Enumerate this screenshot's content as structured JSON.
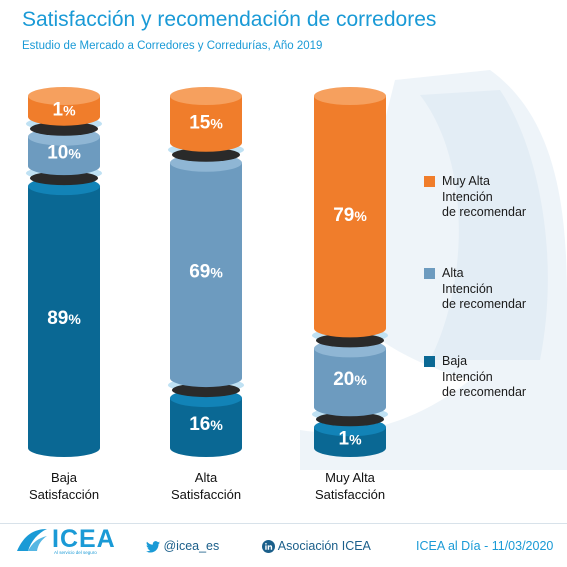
{
  "header": {
    "title": "Satisfacción y recomendación de corredores",
    "subtitle": "Estudio de Mercado a Corredores y Corredurías, Año 2019"
  },
  "chart_data": {
    "type": "bar",
    "stacked": true,
    "title": "Satisfacción y recomendación de corredores",
    "subtitle": "Estudio de Mercado a Corredores y Corredurías, Año 2019",
    "categories": [
      "Baja\nSatisfacción",
      "Alta\nSatisfacción",
      "Muy Alta\nSatisfacción"
    ],
    "series": [
      {
        "name": "Baja Intención de recomendar",
        "values": [
          89,
          16,
          1
        ],
        "color": "#0a6894"
      },
      {
        "name": "Alta Intención de recomendar",
        "values": [
          10,
          69,
          20
        ],
        "color": "#6d9bbf"
      },
      {
        "name": "Muy Alta Intención de recomendar",
        "values": [
          1,
          15,
          79
        ],
        "color": "#f07d2b"
      }
    ],
    "value_suffix": "%",
    "ylim": [
      0,
      100
    ],
    "grid": false,
    "legend_position": "right"
  },
  "legend": [
    {
      "label": "Muy Alta Intención de recomendar",
      "lines": [
        "Muy Alta",
        "Intención",
        "de recomendar"
      ],
      "color": "#f07d2b"
    },
    {
      "label": "Alta Intención de recomendar",
      "lines": [
        "Alta",
        "Intención",
        "de recomendar"
      ],
      "color": "#6d9bbf"
    },
    {
      "label": "Baja Intención de recomendar",
      "lines": [
        "Baja",
        "Intención",
        "de recomendar"
      ],
      "color": "#0a6894"
    }
  ],
  "footer": {
    "logo": "ICEA",
    "logo_tagline": "Al servicio del seguro",
    "twitter": "@icea_es",
    "linkedin": "Asociación ICEA",
    "source": "ICEA al Día - 11/03/2020",
    "icons": {
      "twitter": "twitter-bird-icon",
      "linkedin": "linkedin-icon"
    }
  }
}
